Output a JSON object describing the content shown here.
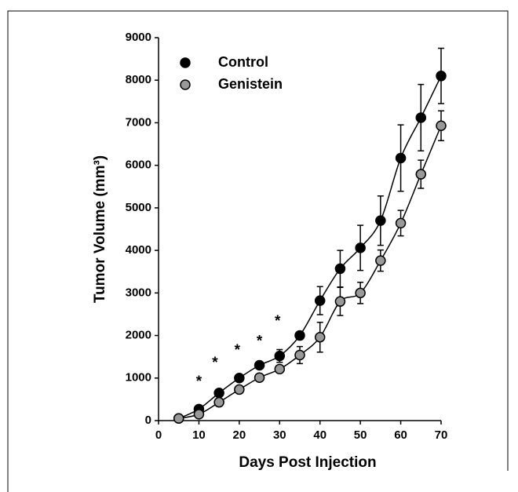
{
  "chart_data": {
    "type": "line",
    "x_label": "Days Post Injection",
    "y_label": "Tumor Volume (mm³)",
    "x": [
      5,
      10,
      15,
      20,
      25,
      30,
      35,
      40,
      45,
      50,
      55,
      60,
      65,
      70
    ],
    "series": [
      {
        "name": "Control",
        "color": "#000000",
        "values": [
          50,
          270,
          650,
          1000,
          1300,
          1520,
          2000,
          2820,
          3570,
          4060,
          4700,
          6170,
          7120,
          8100
        ],
        "errors": [
          20,
          50,
          60,
          60,
          70,
          150,
          80,
          330,
          430,
          530,
          580,
          780,
          780,
          650
        ]
      },
      {
        "name": "Genistein",
        "color": "#999999",
        "values": [
          50,
          150,
          430,
          730,
          1010,
          1210,
          1540,
          1960,
          2800,
          3000,
          3760,
          4640,
          5790,
          6930
        ],
        "errors": [
          20,
          40,
          50,
          50,
          50,
          60,
          200,
          350,
          330,
          250,
          250,
          300,
          330,
          350
        ]
      }
    ],
    "annotations": [
      {
        "text": "*",
        "x": 10,
        "y": 1000
      },
      {
        "text": "*",
        "x": 14,
        "y": 1440
      },
      {
        "text": "*",
        "x": 19.5,
        "y": 1730
      },
      {
        "text": "*",
        "x": 25,
        "y": 1950
      },
      {
        "text": "*",
        "x": 29.5,
        "y": 2420
      }
    ],
    "xlim": [
      0,
      70
    ],
    "xticks": [
      0,
      10,
      20,
      30,
      40,
      50,
      60,
      70
    ],
    "ylim": [
      0,
      9000
    ],
    "yticks": [
      0,
      1000,
      2000,
      3000,
      4000,
      5000,
      6000,
      7000,
      8000,
      9000
    ],
    "legend": "upper-left"
  }
}
